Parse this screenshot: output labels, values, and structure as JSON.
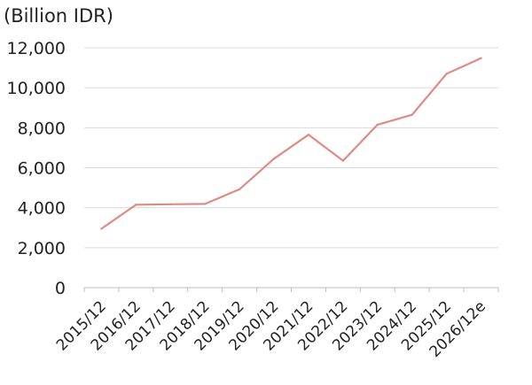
{
  "chart_data": {
    "type": "line",
    "unit_label": "(Billion IDR)",
    "title": "",
    "xlabel": "",
    "ylabel": "",
    "categories": [
      "2015/12",
      "2016/12",
      "2017/12",
      "2018/12",
      "2019/12",
      "2020/12",
      "2021/12",
      "2022/12",
      "2023/12",
      "2024/12",
      "2025/12",
      "2026/12e"
    ],
    "series": [
      {
        "values": [
          2950,
          4150,
          4170,
          4190,
          4920,
          6450,
          7650,
          6350,
          8150,
          8650,
          10700,
          11480
        ]
      }
    ],
    "ylim": [
      0,
      12000
    ],
    "yticks": [
      "0",
      "2,000",
      "4,000",
      "6,000",
      "8,000",
      "10,000",
      "12,000"
    ],
    "ytick_values": [
      0,
      2000,
      4000,
      6000,
      8000,
      10000,
      12000
    ],
    "grid": true,
    "line_color": "#e08a84",
    "grid_color": "#d9d9d9",
    "axis_color": "#bfbfbf"
  }
}
